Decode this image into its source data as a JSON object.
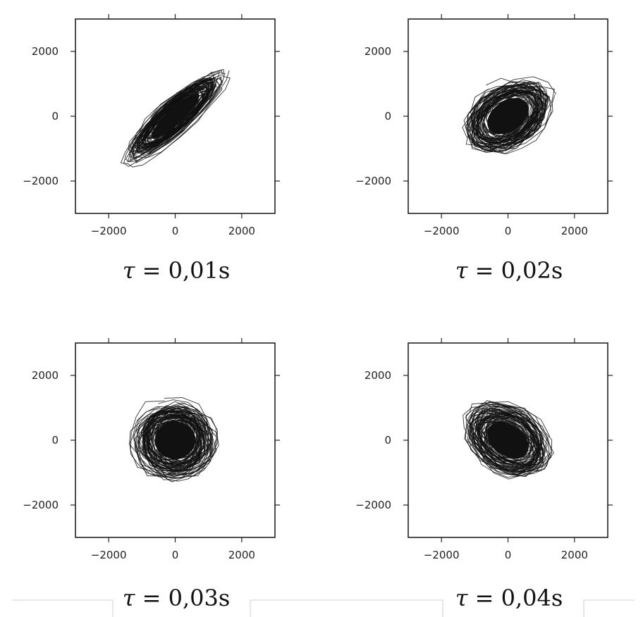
{
  "chart_data": [
    {
      "type": "line",
      "variant": "phase-portrait",
      "caption_symbol": "τ",
      "caption_text": " = 0,01s",
      "xlim": [
        -3000,
        3000
      ],
      "ylim": [
        -3000,
        3000
      ],
      "xticks": [
        -2000,
        0,
        2000
      ],
      "yticks": [
        -2000,
        0,
        2000
      ],
      "xtick_labels": [
        "−2000",
        "0",
        "2000"
      ],
      "ytick_labels": [
        "2000",
        "0",
        "−2000"
      ],
      "grid": false,
      "line_color": "#111111",
      "cloud": {
        "center": [
          0,
          0
        ],
        "major_axis_deg": 43,
        "semi_major": 1750,
        "semi_minor": 420
      }
    },
    {
      "type": "line",
      "variant": "phase-portrait",
      "caption_symbol": "τ",
      "caption_text": " = 0,02s",
      "xlim": [
        -3000,
        3000
      ],
      "ylim": [
        -3000,
        3000
      ],
      "xticks": [
        -2000,
        0,
        2000
      ],
      "yticks": [
        -2000,
        0,
        2000
      ],
      "xtick_labels": [
        "−2000",
        "0",
        "2000"
      ],
      "ytick_labels": [
        "2000",
        "0",
        "−2000"
      ],
      "grid": false,
      "line_color": "#111111",
      "cloud": {
        "center": [
          0,
          0
        ],
        "major_axis_deg": 35,
        "semi_major": 1250,
        "semi_minor": 850
      }
    },
    {
      "type": "line",
      "variant": "phase-portrait",
      "caption_symbol": "τ",
      "caption_text": " = 0,03s",
      "xlim": [
        -3000,
        3000
      ],
      "ylim": [
        -3000,
        3000
      ],
      "xticks": [
        -2000,
        0,
        2000
      ],
      "yticks": [
        -2000,
        0,
        2000
      ],
      "xtick_labels": [
        "−2000",
        "0",
        "2000"
      ],
      "ytick_labels": [
        "2000",
        "0",
        "−2000"
      ],
      "grid": false,
      "line_color": "#111111",
      "cloud": {
        "center": [
          0,
          0
        ],
        "major_axis_deg": 5,
        "semi_major": 1100,
        "semi_minor": 1050
      }
    },
    {
      "type": "line",
      "variant": "phase-portrait",
      "caption_symbol": "τ",
      "caption_text": " = 0,04s",
      "xlim": [
        -3000,
        3000
      ],
      "ylim": [
        -3000,
        3000
      ],
      "xticks": [
        -2000,
        0,
        2000
      ],
      "yticks": [
        -2000,
        0,
        2000
      ],
      "xtick_labels": [
        "−2000",
        "0",
        "2000"
      ],
      "ytick_labels": [
        "2000",
        "0",
        "−2000"
      ],
      "grid": false,
      "line_color": "#111111",
      "cloud": {
        "center": [
          0,
          0
        ],
        "major_axis_deg": -35,
        "semi_major": 1250,
        "semi_minor": 850
      }
    }
  ]
}
